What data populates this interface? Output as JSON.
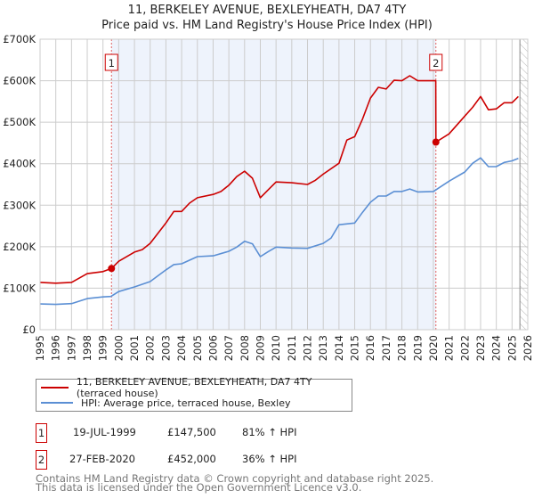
{
  "title": "11, BERKELEY AVENUE, BEXLEYHEATH, DA7 4TY",
  "subtitle": "Price paid vs. HM Land Registry's House Price Index (HPI)",
  "colors": {
    "property": "#cc0000",
    "hpi": "#5b8fd4",
    "shade": "#eef3fc",
    "grid": "#cccccc"
  },
  "chart_data": {
    "type": "line",
    "title": "11, BERKELEY AVENUE, BEXLEYHEATH, DA7 4TY",
    "xlim": [
      1995,
      2026
    ],
    "ylim": [
      0,
      700000
    ],
    "grid": true,
    "y_ticks": [
      {
        "v": 0,
        "label": "£0"
      },
      {
        "v": 100000,
        "label": "£100K"
      },
      {
        "v": 200000,
        "label": "£200K"
      },
      {
        "v": 300000,
        "label": "£300K"
      },
      {
        "v": 400000,
        "label": "£400K"
      },
      {
        "v": 500000,
        "label": "£500K"
      },
      {
        "v": 600000,
        "label": "£600K"
      },
      {
        "v": 700000,
        "label": "£700K"
      }
    ],
    "x_ticks": [
      "1995",
      "1996",
      "1997",
      "1998",
      "1999",
      "2000",
      "2001",
      "2002",
      "2003",
      "2004",
      "2005",
      "2006",
      "2007",
      "2008",
      "2009",
      "2010",
      "2011",
      "2012",
      "2013",
      "2014",
      "2015",
      "2016",
      "2017",
      "2018",
      "2019",
      "2020",
      "2021",
      "2022",
      "2023",
      "2024",
      "2025",
      "2026"
    ],
    "forecast_start": 2025.5,
    "series": [
      {
        "name": "11, BERKELEY AVENUE, BEXLEYHEATH, DA7 4TY (terraced house)",
        "color": "#cc0000",
        "x": [
          1995,
          1996,
          1997,
          1998,
          1999,
          1999.54,
          2000,
          2001,
          2001.5,
          2002,
          2003,
          2003.5,
          2004,
          2004.5,
          2005,
          2006,
          2006.5,
          2007,
          2007.5,
          2008,
          2008.5,
          2009,
          2009.5,
          2010,
          2011,
          2012,
          2012.5,
          2013,
          2014,
          2014.5,
          2015,
          2015.5,
          2016,
          2016.5,
          2017,
          2017.5,
          2018,
          2018.5,
          2019,
          2020,
          2020.15,
          2020.16,
          2021,
          2022,
          2022.5,
          2023,
          2023.5,
          2024,
          2024.5,
          2025,
          2025.4
        ],
        "y": [
          114000,
          112000,
          114000,
          135000,
          140000,
          147500,
          165000,
          187000,
          193000,
          208000,
          257000,
          285000,
          285000,
          305000,
          318000,
          326000,
          333000,
          348000,
          369000,
          382000,
          365000,
          318000,
          337000,
          356000,
          354000,
          350000,
          360000,
          375000,
          401000,
          457000,
          465000,
          508000,
          558000,
          584000,
          580000,
          601000,
          600000,
          612000,
          600000,
          600000,
          600000,
          452000,
          472000,
          515000,
          536000,
          562000,
          530000,
          532000,
          547000,
          547000,
          562000
        ]
      },
      {
        "name": "HPI: Average price, terraced house, Bexley",
        "color": "#5b8fd4",
        "x": [
          1995,
          1996,
          1997,
          1998,
          1999,
          1999.5,
          2000,
          2001,
          2002,
          2003,
          2003.5,
          2004,
          2005,
          2006,
          2007,
          2007.5,
          2008,
          2008.5,
          2009,
          2009.5,
          2010,
          2011,
          2012,
          2013,
          2013.5,
          2014,
          2015,
          2015.5,
          2016,
          2016.5,
          2017,
          2017.5,
          2018,
          2018.5,
          2019,
          2020,
          2021,
          2022,
          2022.5,
          2023,
          2023.5,
          2024,
          2024.5,
          2025,
          2025.4
        ],
        "y": [
          62000,
          61000,
          63000,
          75000,
          79000,
          80000,
          92000,
          103000,
          116000,
          144000,
          157000,
          159000,
          176000,
          178000,
          189000,
          199000,
          213000,
          207000,
          176000,
          188000,
          199000,
          197000,
          196000,
          208000,
          221000,
          253000,
          257000,
          283000,
          307000,
          322000,
          322000,
          333000,
          333000,
          339000,
          332000,
          333000,
          358000,
          380000,
          401000,
          414000,
          393000,
          393000,
          403000,
          407000,
          413000
        ]
      }
    ],
    "sales": [
      {
        "label": "1",
        "x": 1999.54,
        "y": 147500
      },
      {
        "label": "2",
        "x": 2020.16,
        "y": 452000
      }
    ]
  },
  "legend": {
    "property": "11, BERKELEY AVENUE, BEXLEYHEATH, DA7 4TY (terraced house)",
    "hpi": "HPI: Average price, terraced house, Bexley"
  },
  "transactions": [
    {
      "num": "1",
      "date": "19-JUL-1999",
      "price": "£147,500",
      "hpi": "81% ↑ HPI"
    },
    {
      "num": "2",
      "date": "27-FEB-2020",
      "price": "£452,000",
      "hpi": "36% ↑ HPI"
    }
  ],
  "footer": {
    "line1": "Contains HM Land Registry data © Crown copyright and database right 2025.",
    "line2": "This data is licensed under the Open Government Licence v3.0."
  }
}
